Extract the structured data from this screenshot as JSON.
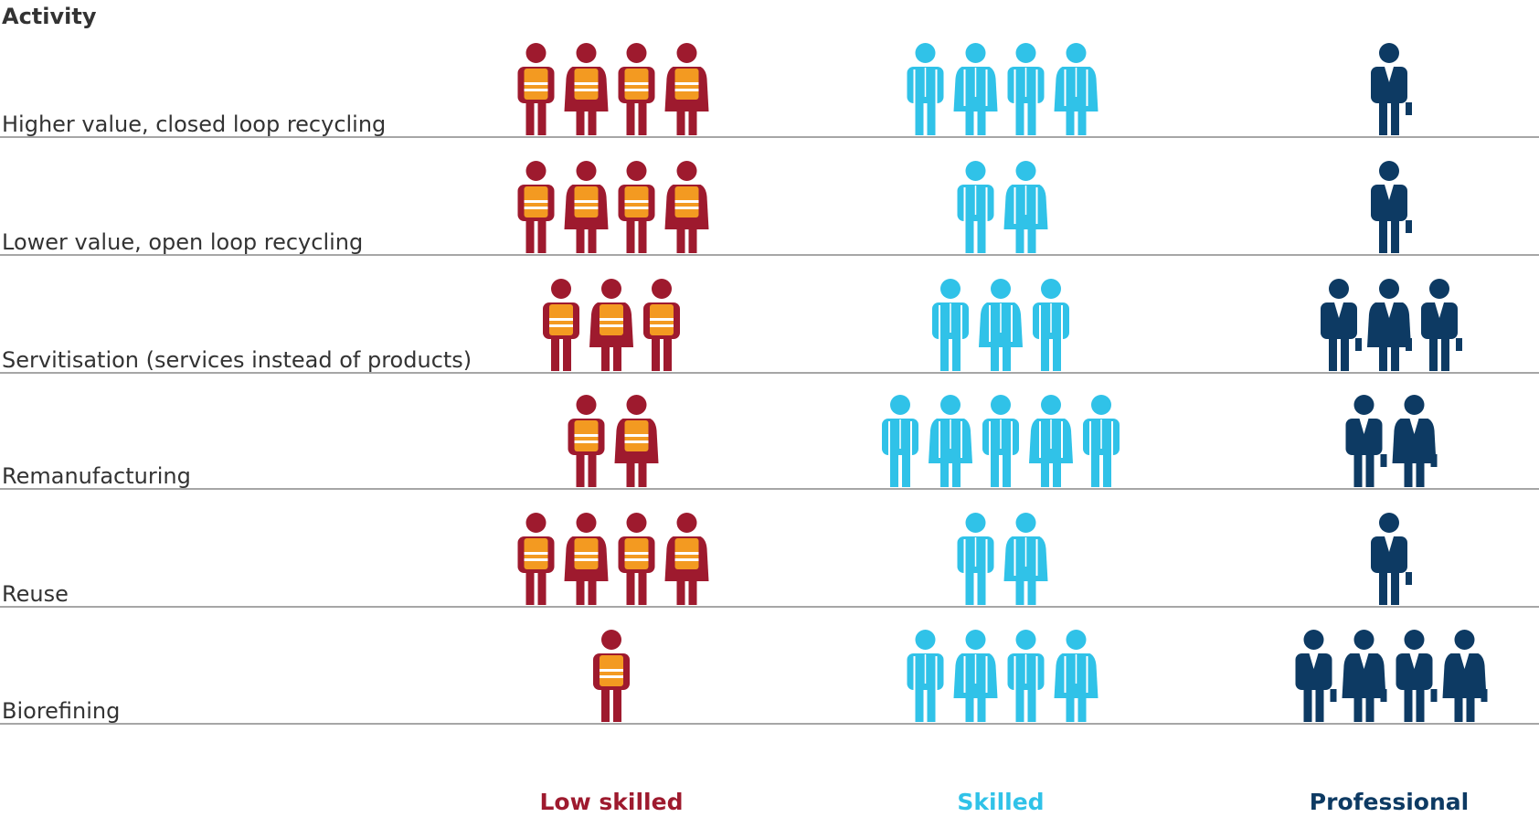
{
  "chart_data": {
    "type": "pictogram",
    "axis_label": "Activity",
    "categories": [
      "Higher value, closed loop recycling",
      "Lower value, open loop recycling",
      "Servitisation  (services instead of products)",
      "Remanufacturing",
      "Reuse",
      "Biorefining"
    ],
    "series": [
      {
        "name": "Low skilled",
        "color": "#9e1a2e",
        "values": [
          4,
          4,
          3,
          2,
          4,
          1
        ]
      },
      {
        "name": "Skilled",
        "color": "#30c2e8",
        "values": [
          4,
          2,
          3,
          5,
          2,
          4
        ]
      },
      {
        "name": "Professional",
        "color": "#0d3a63",
        "values": [
          1,
          1,
          3,
          2,
          1,
          4
        ]
      }
    ]
  }
}
